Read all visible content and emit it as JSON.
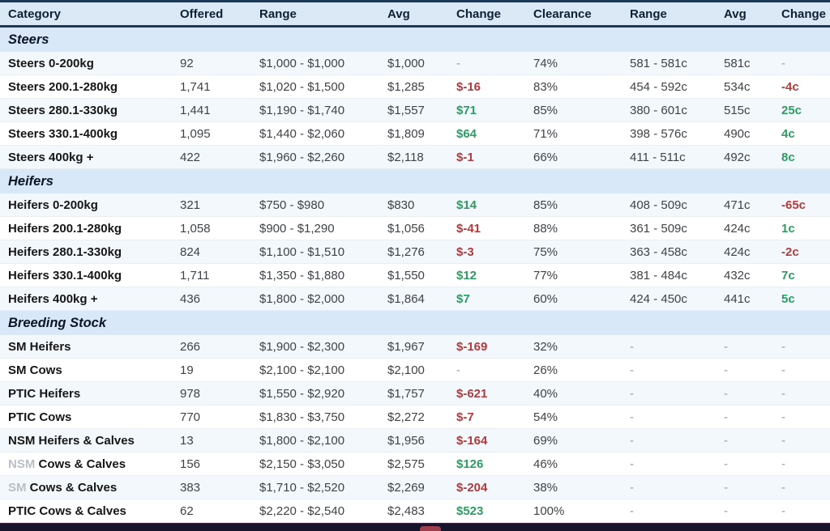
{
  "header": {
    "columns": [
      "Category",
      "Offered",
      "Range",
      "Avg",
      "Change",
      "Clearance",
      "Range",
      "Avg",
      "Change"
    ]
  },
  "colors": {
    "navy_line": "#1c3a57",
    "header_bg": "#dbe9f7",
    "section_bg": "#d8e8f8",
    "row_alt_bg": "#f3f8fc",
    "positive": "#2d9c62",
    "negative": "#b03b3d",
    "neutral": "#969ca3",
    "footer_bg": "#15152b",
    "footer_chip": "#9c3e4e"
  },
  "sections": [
    {
      "title": "Steers",
      "rows": [
        {
          "category_faded_prefix": "",
          "category": "Steers 0-200kg",
          "offered": "92",
          "range": "$1,000 - $1,000",
          "avg": "$1,000",
          "change": "-",
          "change_dir": "none",
          "clearance": "74%",
          "range2": "581 - 581c",
          "avg2": "581c",
          "change2": "-",
          "change2_dir": "none"
        },
        {
          "category_faded_prefix": "",
          "category": "Steers 200.1-280kg",
          "offered": "1,741",
          "range": "$1,020 - $1,500",
          "avg": "$1,285",
          "change": "$-16",
          "change_dir": "down",
          "clearance": "83%",
          "range2": "454 - 592c",
          "avg2": "534c",
          "change2": "-4c",
          "change2_dir": "down"
        },
        {
          "category_faded_prefix": "",
          "category": "Steers 280.1-330kg",
          "offered": "1,441",
          "range": "$1,190 - $1,740",
          "avg": "$1,557",
          "change": "$71",
          "change_dir": "up",
          "clearance": "85%",
          "range2": "380 - 601c",
          "avg2": "515c",
          "change2": "25c",
          "change2_dir": "up"
        },
        {
          "category_faded_prefix": "",
          "category": "Steers 330.1-400kg",
          "offered": "1,095",
          "range": "$1,440 - $2,060",
          "avg": "$1,809",
          "change": "$64",
          "change_dir": "up",
          "clearance": "71%",
          "range2": "398 - 576c",
          "avg2": "490c",
          "change2": "4c",
          "change2_dir": "up"
        },
        {
          "category_faded_prefix": "",
          "category": "Steers 400kg +",
          "offered": "422",
          "range": "$1,960 - $2,260",
          "avg": "$2,118",
          "change": "$-1",
          "change_dir": "down",
          "clearance": "66%",
          "range2": "411 - 511c",
          "avg2": "492c",
          "change2": "8c",
          "change2_dir": "up"
        }
      ]
    },
    {
      "title": "Heifers",
      "rows": [
        {
          "category_faded_prefix": "",
          "category": "Heifers 0-200kg",
          "offered": "321",
          "range": "$750 - $980",
          "avg": "$830",
          "change": "$14",
          "change_dir": "up",
          "clearance": "85%",
          "range2": "408 - 509c",
          "avg2": "471c",
          "change2": "-65c",
          "change2_dir": "down"
        },
        {
          "category_faded_prefix": "",
          "category": "Heifers 200.1-280kg",
          "offered": "1,058",
          "range": "$900 - $1,290",
          "avg": "$1,056",
          "change": "$-41",
          "change_dir": "down",
          "clearance": "88%",
          "range2": "361 - 509c",
          "avg2": "424c",
          "change2": "1c",
          "change2_dir": "up"
        },
        {
          "category_faded_prefix": "",
          "category": "Heifers 280.1-330kg",
          "offered": "824",
          "range": "$1,100 - $1,510",
          "avg": "$1,276",
          "change": "$-3",
          "change_dir": "down",
          "clearance": "75%",
          "range2": "363 - 458c",
          "avg2": "424c",
          "change2": "-2c",
          "change2_dir": "down"
        },
        {
          "category_faded_prefix": "",
          "category": "Heifers 330.1-400kg",
          "offered": "1,711",
          "range": "$1,350 - $1,880",
          "avg": "$1,550",
          "change": "$12",
          "change_dir": "up",
          "clearance": "77%",
          "range2": "381 - 484c",
          "avg2": "432c",
          "change2": "7c",
          "change2_dir": "up"
        },
        {
          "category_faded_prefix": "",
          "category": "Heifers 400kg +",
          "offered": "436",
          "range": "$1,800 - $2,000",
          "avg": "$1,864",
          "change": "$7",
          "change_dir": "up",
          "clearance": "60%",
          "range2": "424 - 450c",
          "avg2": "441c",
          "change2": "5c",
          "change2_dir": "up"
        }
      ]
    },
    {
      "title": "Breeding Stock",
      "rows": [
        {
          "category_faded_prefix": "",
          "category": "SM Heifers",
          "offered": "266",
          "range": "$1,900 - $2,300",
          "avg": "$1,967",
          "change": "$-169",
          "change_dir": "down",
          "clearance": "32%",
          "range2": "-",
          "avg2": "-",
          "change2": "-",
          "change2_dir": "none"
        },
        {
          "category_faded_prefix": "",
          "category": "SM Cows",
          "offered": "19",
          "range": "$2,100 - $2,100",
          "avg": "$2,100",
          "change": "-",
          "change_dir": "none",
          "clearance": "26%",
          "range2": "-",
          "avg2": "-",
          "change2": "-",
          "change2_dir": "none"
        },
        {
          "category_faded_prefix": "",
          "category": "PTIC Heifers",
          "offered": "978",
          "range": "$1,550 - $2,920",
          "avg": "$1,757",
          "change": "$-621",
          "change_dir": "down",
          "clearance": "40%",
          "range2": "-",
          "avg2": "-",
          "change2": "-",
          "change2_dir": "none"
        },
        {
          "category_faded_prefix": "",
          "category": "PTIC Cows",
          "offered": "770",
          "range": "$1,830 - $3,750",
          "avg": "$2,272",
          "change": "$-7",
          "change_dir": "down",
          "clearance": "54%",
          "range2": "-",
          "avg2": "-",
          "change2": "-",
          "change2_dir": "none"
        },
        {
          "category_faded_prefix": "",
          "category": "NSM Heifers & Calves",
          "offered": "13",
          "range": "$1,800 - $2,100",
          "avg": "$1,956",
          "change": "$-164",
          "change_dir": "down",
          "clearance": "69%",
          "range2": "-",
          "avg2": "-",
          "change2": "-",
          "change2_dir": "none"
        },
        {
          "category_faded_prefix": "NSM ",
          "category": "Cows & Calves",
          "offered": "156",
          "range": "$2,150 - $3,050",
          "avg": "$2,575",
          "change": "$126",
          "change_dir": "up",
          "clearance": "46%",
          "range2": "-",
          "avg2": "-",
          "change2": "-",
          "change2_dir": "none"
        },
        {
          "category_faded_prefix": "SM ",
          "category": "Cows & Calves",
          "offered": "383",
          "range": "$1,710 - $2,520",
          "avg": "$2,269",
          "change": "$-204",
          "change_dir": "down",
          "clearance": "38%",
          "range2": "-",
          "avg2": "-",
          "change2": "-",
          "change2_dir": "none"
        },
        {
          "category_faded_prefix": "",
          "category": "PTIC Cows & Calves",
          "offered": "62",
          "range": "$2,220 - $2,540",
          "avg": "$2,483",
          "change": "$523",
          "change_dir": "up",
          "clearance": "100%",
          "range2": "-",
          "avg2": "-",
          "change2": "-",
          "change2_dir": "none"
        }
      ]
    }
  ]
}
